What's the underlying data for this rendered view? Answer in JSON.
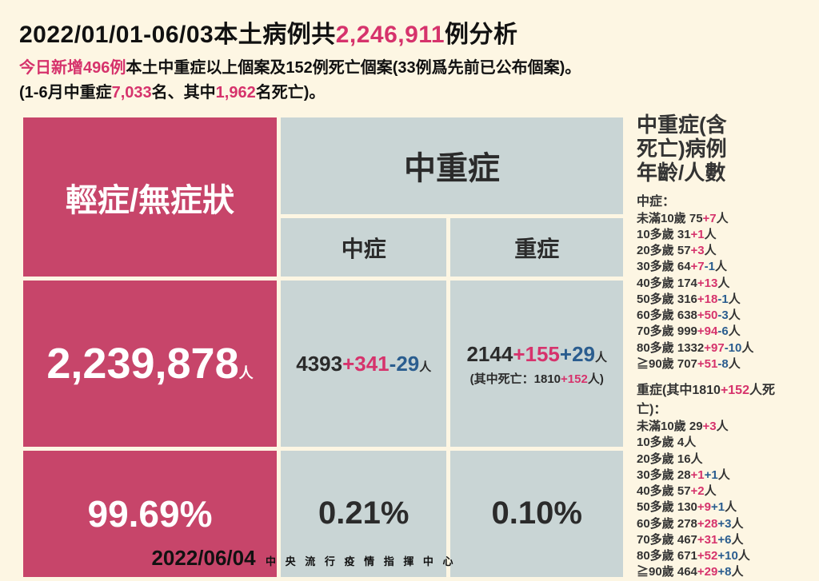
{
  "colors": {
    "background": "#fdf6e3",
    "pink_cell": "#c7456a",
    "gray_cell": "#c9d5d5",
    "highlight_red": "#d6336c",
    "minus_blue": "#2a5d8f",
    "text": "#111111"
  },
  "typography": {
    "title_fontsize": 30,
    "subtitle_fontsize": 20,
    "header_cell_fontsize": 40,
    "bignum_fontsize": 54,
    "pct_fontsize": 46,
    "side_title_fontsize": 26,
    "side_item_fontsize": 15,
    "weight": 800
  },
  "title": {
    "pre": "2022/01/01-06/03本土病例共",
    "count": "2,246,911",
    "post": "例分析"
  },
  "sub1": {
    "lead": "今日新增496例",
    "rest": "本土中重症以上個案及152例死亡個案(33例爲先前已公布個案)。"
  },
  "sub2": {
    "pre": "(1-6月中重症",
    "n1": "7,033",
    "mid": "名、其中",
    "n2": "1,962",
    "post": "名死亡)。"
  },
  "table": {
    "type": "table",
    "cell_spacing": 5,
    "mild": {
      "label": "輕症/無症狀",
      "count": "2,239,878",
      "unit": "人",
      "pct": "99.69%"
    },
    "modsev": {
      "label": "中重症",
      "moderate": {
        "label": "中症",
        "base": "4393",
        "plus": "+341",
        "minus": "-29",
        "unit": "人",
        "pct": "0.21%"
      },
      "severe": {
        "label": "重症",
        "base": "2144",
        "plus": "+155",
        "plus2": "+29",
        "unit": "人",
        "death_pre": "(其中死亡：",
        "death_base": "1810",
        "death_plus": "+152",
        "death_post": "人)",
        "pct": "0.10%"
      }
    }
  },
  "side": {
    "title_l1": "中重症(含",
    "title_l2": "死亡)病例",
    "title_l3": "年齡/人數",
    "moderate_label": "中症：",
    "moderate": [
      {
        "age": "未滿10歲",
        "base": "75",
        "plus": "+7",
        "minus": "",
        "tail": "人"
      },
      {
        "age": "10多歲",
        "base": "31",
        "plus": "+1",
        "minus": "",
        "tail": "人"
      },
      {
        "age": "20多歲",
        "base": "57",
        "plus": "+3",
        "minus": "",
        "tail": "人"
      },
      {
        "age": "30多歲",
        "base": "64",
        "plus": "+7",
        "minus": "-1",
        "tail": "人"
      },
      {
        "age": "40多歲",
        "base": "174",
        "plus": "+13",
        "minus": "",
        "tail": "人"
      },
      {
        "age": "50多歲",
        "base": "316",
        "plus": "+18",
        "minus": "-1",
        "tail": "人"
      },
      {
        "age": "60多歲",
        "base": "638",
        "plus": "+50",
        "minus": "-3",
        "tail": "人"
      },
      {
        "age": "70多歲",
        "base": "999",
        "plus": "+94",
        "minus": "-6",
        "tail": "人"
      },
      {
        "age": "80多歲",
        "base": "1332",
        "plus": "+97",
        "minus": "-10",
        "tail": "人"
      },
      {
        "age": "≧90歲",
        "base": "707",
        "plus": "+51",
        "minus": "-8",
        "tail": "人"
      }
    ],
    "severe_label_pre": "重症(其中",
    "severe_label_base": "1810",
    "severe_label_plus": "+152",
    "severe_label_post": "人死亡)：",
    "severe": [
      {
        "age": "未滿10歲",
        "base": "29",
        "plus": "+3",
        "minus": "",
        "tail": "人"
      },
      {
        "age": "10多歲",
        "base": "4",
        "plus": "",
        "minus": "",
        "tail": "人"
      },
      {
        "age": "20多歲",
        "base": "16",
        "plus": "",
        "minus": "",
        "tail": "人"
      },
      {
        "age": "30多歲",
        "base": "28",
        "plus": "+1",
        "minus": "+1",
        "tail": "人"
      },
      {
        "age": "40多歲",
        "base": "57",
        "plus": "+2",
        "minus": "",
        "tail": "人"
      },
      {
        "age": "50多歲",
        "base": "130",
        "plus": "+9",
        "minus": "+1",
        "tail": "人"
      },
      {
        "age": "60多歲",
        "base": "278",
        "plus": "+28",
        "minus": "+3",
        "tail": "人"
      },
      {
        "age": "70多歲",
        "base": "467",
        "plus": "+31",
        "minus": "+6",
        "tail": "人"
      },
      {
        "age": "80多歲",
        "base": "671",
        "plus": "+52",
        "minus": "+10",
        "tail": "人"
      },
      {
        "age": "≧90歲",
        "base": "464",
        "plus": "+29",
        "minus": "+8",
        "tail": "人"
      }
    ]
  },
  "footer": {
    "date": "2022/06/04",
    "source": "中 央 流 行 疫 情 指 揮 中 心"
  }
}
